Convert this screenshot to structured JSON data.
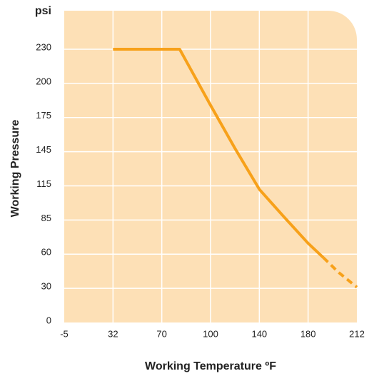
{
  "chart_data": {
    "type": "line",
    "y_unit": "psi",
    "ylabel": "Working  Pressure",
    "xlabel": "Working Temperature ºF",
    "xlim": [
      -5,
      212
    ],
    "xticks": [
      -5,
      32,
      70,
      100,
      140,
      180,
      212
    ],
    "ylim": [
      0,
      230
    ],
    "yticks": [
      0,
      30,
      60,
      85,
      115,
      145,
      175,
      200,
      230
    ],
    "grid": true,
    "background": "#fde0b6",
    "grid_color": "#ffffff",
    "series": [
      {
        "color": "#f7a11a",
        "dashed": false,
        "x": [
          32,
          81,
          100,
          120,
          140,
          160,
          180,
          190
        ],
        "values": [
          230,
          230,
          184,
          148,
          112,
          88,
          68,
          57
        ]
      },
      {
        "color": "#f7a11a",
        "dashed": true,
        "x": [
          190,
          200,
          212
        ],
        "values": [
          57,
          44,
          31
        ]
      }
    ]
  }
}
